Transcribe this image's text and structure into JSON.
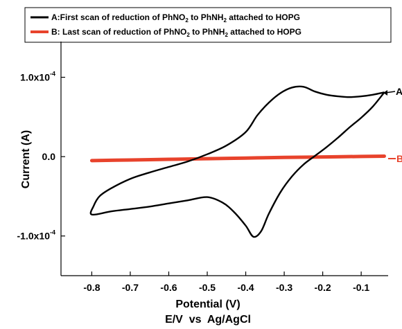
{
  "chart_data": {
    "type": "line",
    "xlabel": "Potential (V)",
    "xlabel2": "E/V  vs  Ag/AgCl",
    "ylabel": "Current (A)",
    "xlim": [
      -0.88,
      -0.03
    ],
    "ylim": [
      -0.00015,
      0.000145
    ],
    "x_ticks": [
      -0.8,
      -0.7,
      -0.6,
      -0.5,
      -0.4,
      -0.3,
      -0.2,
      -0.1
    ],
    "x_tick_labels": [
      "-0.8",
      "-0.7",
      "-0.6",
      "-0.5",
      "-0.4",
      "-0.3",
      "-0.2",
      "-0.1"
    ],
    "y_ticks": [
      0.0001,
      0.0,
      -0.0001
    ],
    "y_tick_labels": [
      "1.0x10",
      "0.0",
      "-1.0x10"
    ],
    "y_tick_exponents": [
      "-4",
      "",
      "-4"
    ],
    "legend_position": "top",
    "series": [
      {
        "name": "A:First scan of reduction of PhNO2 to PhNH2 attached to HOPG",
        "legend_parts": [
          "A:First scan of reduction of PhNO",
          "2",
          " to PhNH",
          "2",
          " attached to HOPG"
        ],
        "color": "#000000",
        "curve_label": "A",
        "x": [
          -0.04,
          -0.07,
          -0.1,
          -0.13,
          -0.16,
          -0.19,
          -0.22,
          -0.25,
          -0.28,
          -0.31,
          -0.34,
          -0.37,
          -0.4,
          -0.45,
          -0.5,
          -0.55,
          -0.6,
          -0.65,
          -0.7,
          -0.75,
          -0.78,
          -0.795,
          -0.8,
          -0.75,
          -0.7,
          -0.65,
          -0.6,
          -0.55,
          -0.5,
          -0.46,
          -0.43,
          -0.4,
          -0.38,
          -0.36,
          -0.34,
          -0.31,
          -0.28,
          -0.25,
          -0.22,
          -0.19,
          -0.16,
          -0.13,
          -0.1,
          -0.07,
          -0.04
        ],
        "y": [
          8.1e-05,
          7.8e-05,
          7.6e-05,
          7.5e-05,
          7.6e-05,
          7.8e-05,
          8.2e-05,
          8.8e-05,
          8.7e-05,
          8e-05,
          6.8e-05,
          5.2e-05,
          3.1e-05,
          1.4e-05,
          3e-06,
          -6e-06,
          -1.3e-05,
          -2e-05,
          -2.8e-05,
          -4e-05,
          -5e-05,
          -6.2e-05,
          -7.3e-05,
          -6.9e-05,
          -6.6e-05,
          -6.3e-05,
          -5.9e-05,
          -5.5e-05,
          -5.1e-05,
          -5.8e-05,
          -7e-05,
          -8.7e-05,
          -0.000101,
          -9.4e-05,
          -7.2e-05,
          -4.5e-05,
          -2.5e-05,
          -1e-05,
          1e-06,
          1.2e-05,
          2.4e-05,
          3.7e-05,
          4.9e-05,
          6.3e-05,
          8.1e-05
        ]
      },
      {
        "name": "B: Last scan of reduction of PhNO2 to PhNH2 attached to HOPG",
        "legend_parts": [
          "B: Last scan of reduction of PhNO",
          "2",
          " to PhNH",
          "2",
          " attached to HOPG"
        ],
        "color": "#e8432c",
        "curve_label": "B",
        "x": [
          -0.8,
          -0.7,
          -0.6,
          -0.5,
          -0.4,
          -0.3,
          -0.2,
          -0.1,
          -0.04
        ],
        "y": [
          -5e-06,
          -4.2e-06,
          -3.4e-06,
          -2.6e-06,
          -1.8e-06,
          -1e-06,
          -4e-07,
          2e-07,
          6e-07
        ]
      }
    ]
  }
}
